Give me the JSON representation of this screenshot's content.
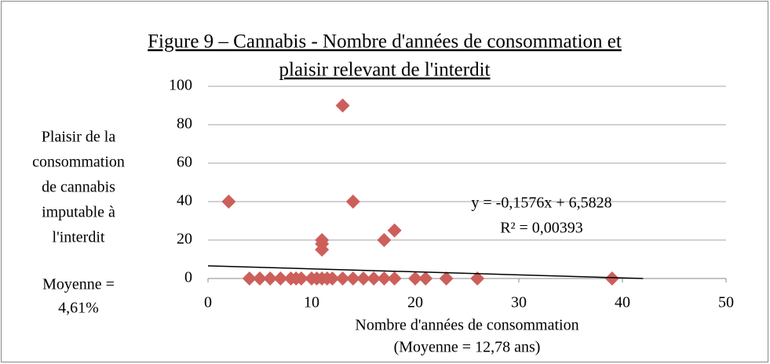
{
  "chart_data": {
    "type": "scatter",
    "title": [
      "Figure 9 – Cannabis - Nombre d'années de consommation et",
      "plaisir relevant de l'interdit"
    ],
    "y_label": [
      "Plaisir de la",
      "consommation",
      "de cannabis",
      "imputable à",
      "l'interdit"
    ],
    "y_note": [
      "Moyenne =",
      "4,61%"
    ],
    "x_label": [
      "Nombre d'années de consommation",
      "(Moyenne = 12,78 ans)"
    ],
    "series": [
      {
        "color": "#cd5f5b",
        "x": [
          2,
          13,
          14,
          11,
          11,
          11,
          17,
          18,
          4,
          5,
          6,
          7,
          8,
          8.5,
          9,
          10,
          10.5,
          11,
          11.5,
          12,
          13,
          14,
          15,
          16,
          17,
          18,
          20,
          21,
          23,
          26,
          39
        ],
        "values": [
          40,
          90,
          40,
          20,
          18,
          15,
          20,
          25,
          0,
          0,
          0,
          0,
          0,
          0,
          0,
          0,
          0,
          0,
          0,
          0,
          0,
          0,
          0,
          0,
          0,
          0,
          0,
          0,
          0,
          0,
          0
        ]
      }
    ],
    "trendline": {
      "x": [
        0,
        42
      ],
      "values": [
        6.6,
        0
      ],
      "color": "#000000",
      "equation": "y = -0,1576x + 6,5828",
      "r2": "R² = 0,00393"
    },
    "xlim": [
      0,
      50
    ],
    "xticks": [
      0,
      10,
      20,
      30,
      40,
      50
    ],
    "ylim": [
      0,
      100
    ],
    "yticks": [
      0,
      20,
      40,
      60,
      80,
      100
    ],
    "grid": true
  }
}
